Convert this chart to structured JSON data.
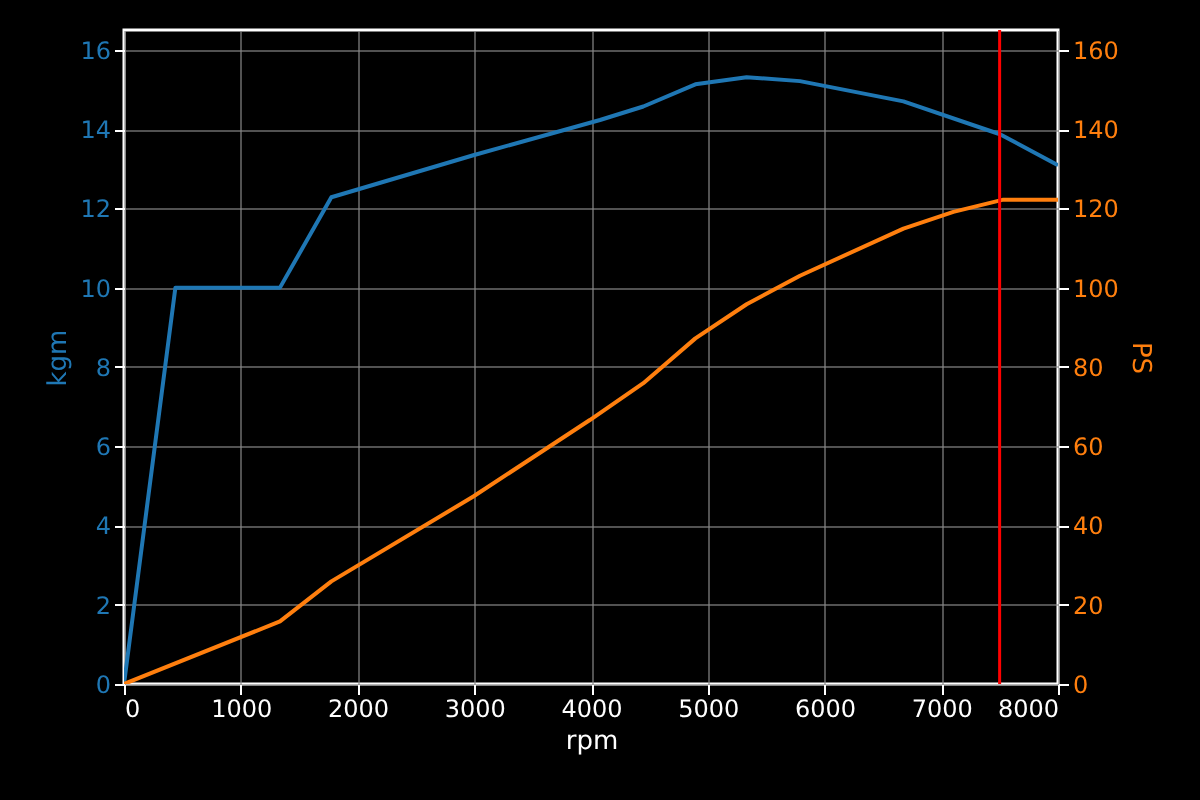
{
  "chart_data": {
    "type": "line",
    "xlabel": "rpm",
    "ylabel": "kgm",
    "y2label": "PS",
    "xlim": [
      0,
      8000
    ],
    "xticks": [
      0,
      1000,
      2000,
      3000,
      4000,
      5000,
      6000,
      7000,
      8000
    ],
    "ylim": [
      0,
      16.5
    ],
    "yticks": [
      0,
      2,
      4,
      6,
      8,
      10,
      12,
      14,
      16
    ],
    "y2lim": [
      0,
      165
    ],
    "y2ticks": [
      0,
      20,
      40,
      60,
      80,
      100,
      120,
      140,
      160
    ],
    "grid": true,
    "series": [
      {
        "color": "#1f77b4",
        "x": [
          0,
          440,
          1336,
          1776,
          2992,
          4077,
          4448,
          4894,
          5333,
          5790,
          6676,
          7503,
          8000
        ],
        "values": [
          0,
          10.0,
          10.0,
          12.28,
          13.34,
          14.23,
          14.57,
          15.13,
          15.31,
          15.21,
          14.7,
          13.87,
          13.09
        ]
      },
      {
        "color": "#ff7f0e",
        "axis": "y2",
        "x": [
          0,
          1336,
          1776,
          2992,
          3990,
          4448,
          4894,
          5333,
          5790,
          6676,
          7104,
          7532,
          8000
        ],
        "values": [
          0,
          15.8,
          25.9,
          47.3,
          66.6,
          75.9,
          87.2,
          95.8,
          103.0,
          114.9,
          119.1,
          122.2,
          122.2
        ]
      }
    ],
    "ref_lines": [
      {
        "axis": "x",
        "value": 7500,
        "color": "#ff0000"
      }
    ]
  }
}
